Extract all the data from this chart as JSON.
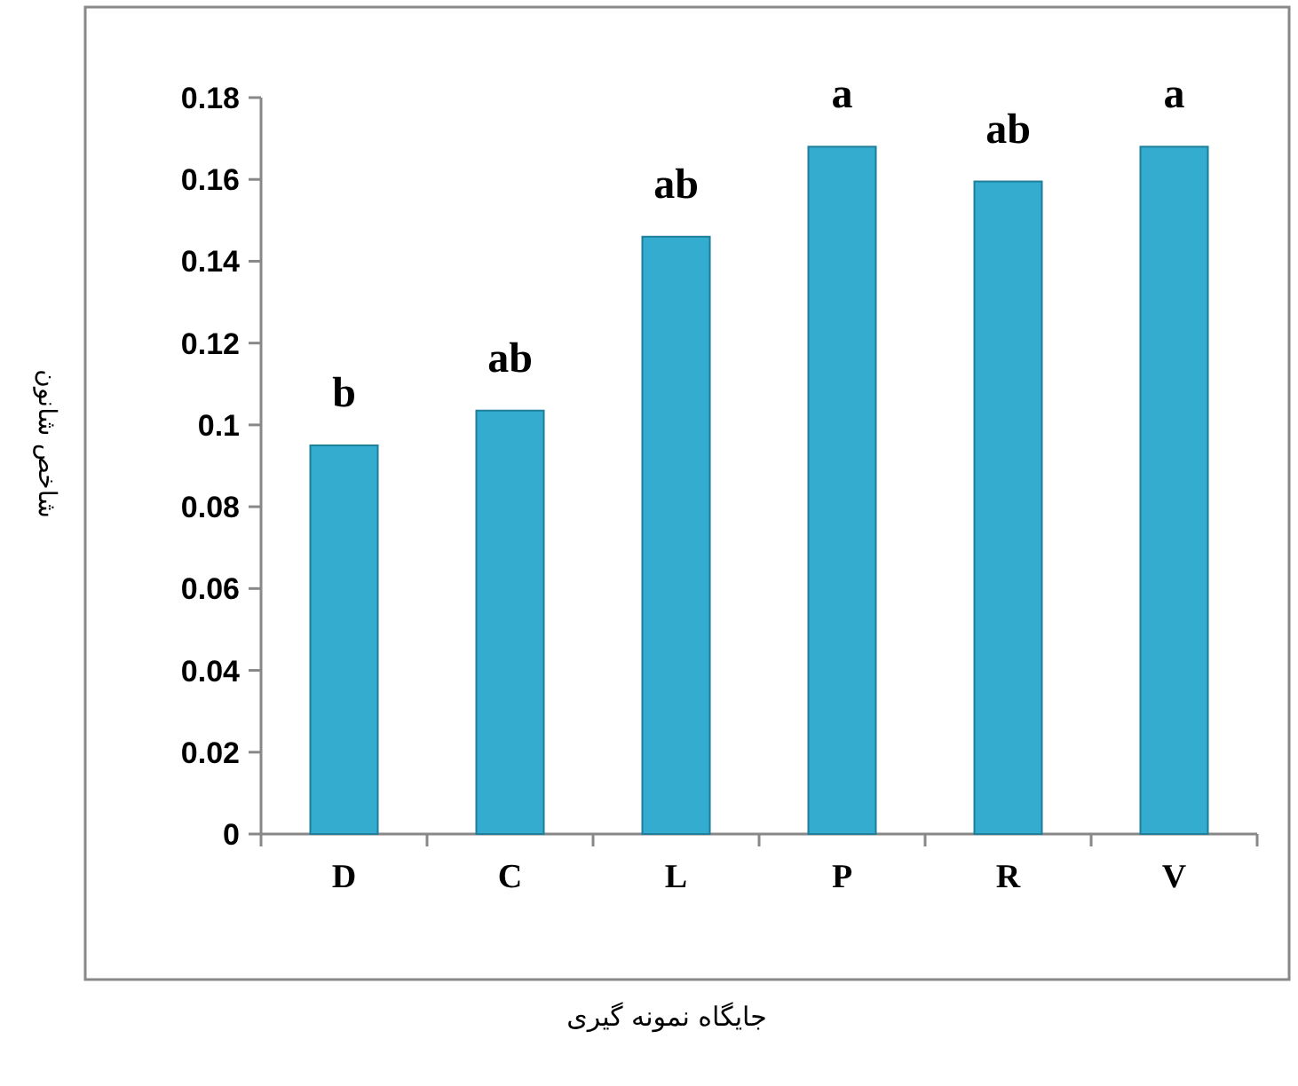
{
  "chart_data": {
    "type": "bar",
    "xlabel": "جایگاه نمونه گیری",
    "ylabel": "شاخص شانون",
    "categories": [
      "D",
      "C",
      "L",
      "P",
      "R",
      "V"
    ],
    "values": [
      0.095,
      0.1035,
      0.146,
      0.168,
      0.1595,
      0.168
    ],
    "color": "#33acd0",
    "ylim": [
      0,
      0.18
    ],
    "yticks": [
      0,
      0.02,
      0.04,
      0.06,
      0.08,
      {
        "value": 0.1,
        "label": "0.1"
      },
      0.12,
      0.14,
      0.16,
      0.18
    ],
    "grid": false,
    "annotations": [
      {
        "text": "b",
        "x": "D",
        "y": 0.095
      },
      {
        "text": "ab",
        "x": "C",
        "y": 0.1035
      },
      {
        "text": "ab",
        "x": "L",
        "y": 0.146
      },
      {
        "text": "a",
        "x": "P",
        "y": 0.168
      },
      {
        "text": "ab",
        "x": "R",
        "y": 0.1595
      },
      {
        "text": "a",
        "x": "V",
        "y": 0.168
      }
    ]
  }
}
